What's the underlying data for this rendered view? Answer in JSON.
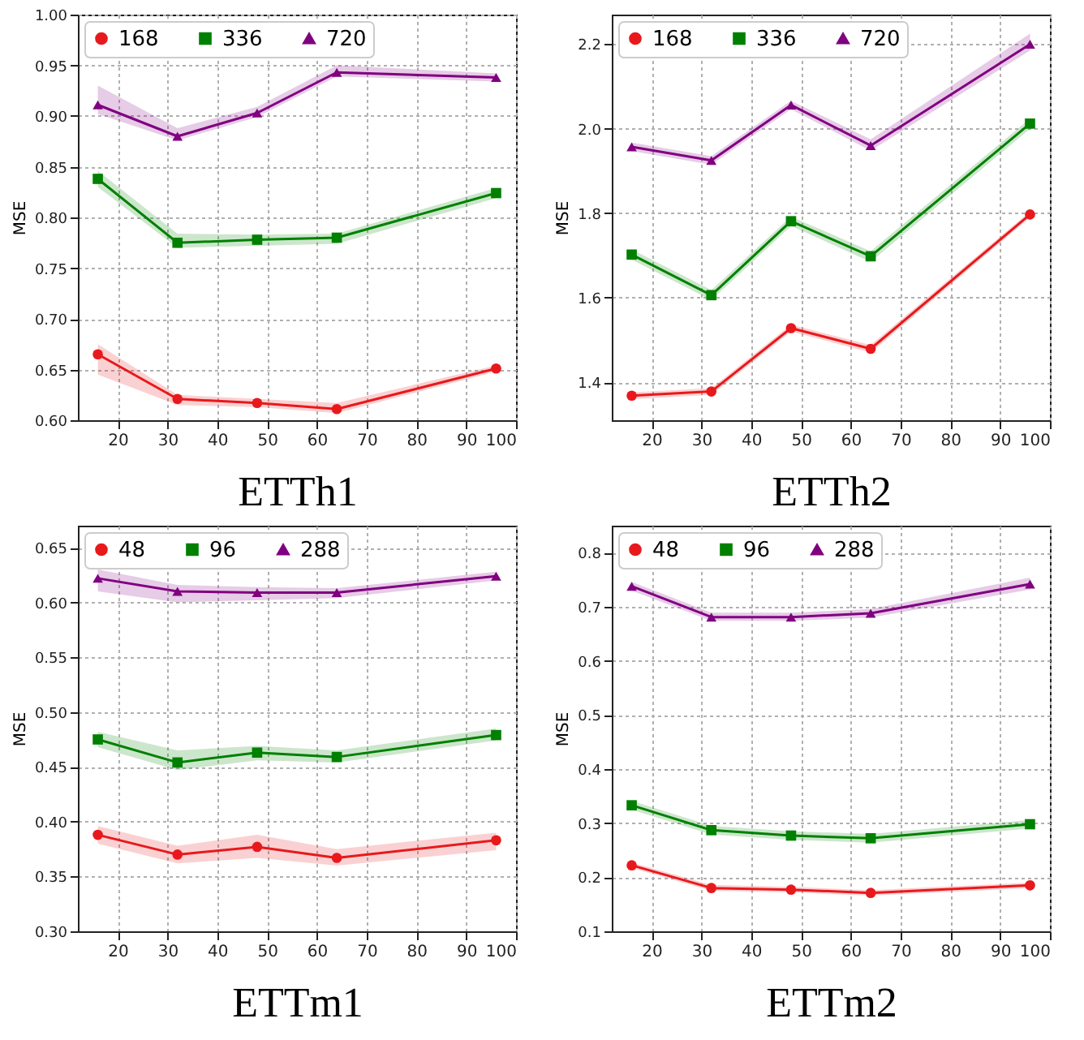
{
  "chart_data": [
    {
      "type": "line",
      "xlabel": "ETTh1",
      "ylabel": "MSE",
      "x": [
        16,
        32,
        48,
        64,
        96
      ],
      "xlim": [
        12,
        100
      ],
      "xticks": [
        20,
        30,
        40,
        50,
        60,
        70,
        80,
        90,
        100
      ],
      "ylim": [
        0.6,
        1.0
      ],
      "yticks": [
        {
          "value": 0.6,
          "label": "0.60"
        },
        0.65,
        {
          "value": 0.7,
          "label": "0.70"
        },
        0.75,
        {
          "value": 0.8,
          "label": "0.80"
        },
        0.85,
        {
          "value": 0.9,
          "label": "0.90"
        },
        0.95,
        {
          "value": 1.0,
          "label": "1.00"
        }
      ],
      "grid": true,
      "legend": "top left",
      "series": [
        {
          "name": "168",
          "color": "#e8191c",
          "marker": "circle",
          "values": [
            0.665,
            0.621,
            0.617,
            0.611,
            0.651
          ],
          "lower": [
            0.645,
            0.615,
            0.613,
            0.607,
            0.648
          ],
          "upper": [
            0.675,
            0.625,
            0.621,
            0.617,
            0.654
          ]
        },
        {
          "name": "336",
          "color": "#008000",
          "marker": "square",
          "values": [
            0.838,
            0.775,
            0.778,
            0.78,
            0.824
          ],
          "lower": [
            0.83,
            0.77,
            0.772,
            0.774,
            0.819
          ],
          "upper": [
            0.846,
            0.784,
            0.783,
            0.784,
            0.829
          ]
        },
        {
          "name": "720",
          "color": "#800080",
          "marker": "triangle",
          "values": [
            0.911,
            0.88,
            0.903,
            0.943,
            0.938
          ],
          "lower": [
            0.902,
            0.876,
            0.899,
            0.939,
            0.934
          ],
          "upper": [
            0.93,
            0.888,
            0.909,
            0.95,
            0.942
          ]
        }
      ]
    },
    {
      "type": "line",
      "xlabel": "ETTh2",
      "ylabel": "MSE",
      "x": [
        16,
        32,
        48,
        64,
        96
      ],
      "xlim": [
        12,
        100
      ],
      "xticks": [
        20,
        30,
        40,
        50,
        60,
        70,
        80,
        90,
        100
      ],
      "ylim": [
        1.31,
        2.27
      ],
      "yticks": [
        1.4,
        1.6,
        1.8,
        {
          "value": 2.0,
          "label": "2.0"
        },
        2.2
      ],
      "grid": true,
      "legend": "top left",
      "series": [
        {
          "name": "168",
          "color": "#e8191c",
          "marker": "circle",
          "values": [
            1.368,
            1.378,
            1.528,
            1.479,
            1.797
          ],
          "lower": [
            1.36,
            1.37,
            1.52,
            1.47,
            1.79
          ],
          "upper": [
            1.376,
            1.386,
            1.536,
            1.488,
            1.804
          ]
        },
        {
          "name": "336",
          "color": "#008000",
          "marker": "square",
          "values": [
            1.702,
            1.606,
            1.781,
            1.698,
            2.012
          ],
          "lower": [
            1.69,
            1.594,
            1.77,
            1.685,
            2.0
          ],
          "upper": [
            1.714,
            1.618,
            1.792,
            1.71,
            2.024
          ]
        },
        {
          "name": "720",
          "color": "#800080",
          "marker": "triangle",
          "values": [
            1.957,
            1.925,
            2.056,
            1.96,
            2.2
          ],
          "lower": [
            1.947,
            1.915,
            2.046,
            1.948,
            2.185
          ],
          "upper": [
            1.967,
            1.935,
            2.066,
            1.975,
            2.225
          ]
        }
      ]
    },
    {
      "type": "line",
      "xlabel": "ETTm1",
      "ylabel": "MSE",
      "x": [
        16,
        32,
        48,
        64,
        96
      ],
      "xlim": [
        12,
        100
      ],
      "xticks": [
        20,
        30,
        40,
        50,
        60,
        70,
        80,
        90,
        100
      ],
      "ylim": [
        0.3,
        0.67
      ],
      "yticks": [
        {
          "value": 0.3,
          "label": "0.30"
        },
        0.35,
        {
          "value": 0.4,
          "label": "0.40"
        },
        0.45,
        {
          "value": 0.5,
          "label": "0.50"
        },
        0.55,
        {
          "value": 0.6,
          "label": "0.60"
        },
        0.65
      ],
      "grid": true,
      "legend": "top left",
      "series": [
        {
          "name": "48",
          "color": "#e8191c",
          "marker": "circle",
          "values": [
            0.388,
            0.37,
            0.377,
            0.367,
            0.383
          ],
          "lower": [
            0.38,
            0.362,
            0.367,
            0.36,
            0.374
          ],
          "upper": [
            0.396,
            0.378,
            0.388,
            0.375,
            0.39
          ]
        },
        {
          "name": "96",
          "color": "#008000",
          "marker": "square",
          "values": [
            0.475,
            0.454,
            0.463,
            0.459,
            0.479
          ],
          "lower": [
            0.468,
            0.447,
            0.456,
            0.454,
            0.474
          ],
          "upper": [
            0.482,
            0.465,
            0.469,
            0.465,
            0.485
          ]
        },
        {
          "name": "288",
          "color": "#800080",
          "marker": "triangle",
          "values": [
            0.622,
            0.61,
            0.609,
            0.609,
            0.624
          ],
          "lower": [
            0.61,
            0.6,
            0.602,
            0.604,
            0.62
          ],
          "upper": [
            0.63,
            0.616,
            0.614,
            0.613,
            0.628
          ]
        }
      ]
    },
    {
      "type": "line",
      "xlabel": "ETTm2",
      "ylabel": "MSE",
      "x": [
        16,
        32,
        48,
        64,
        96
      ],
      "xlim": [
        12,
        100
      ],
      "xticks": [
        20,
        30,
        40,
        50,
        60,
        70,
        80,
        90,
        100
      ],
      "ylim": [
        0.1,
        0.85
      ],
      "yticks": [
        0.1,
        0.2,
        0.3,
        0.4,
        0.5,
        0.6,
        0.7,
        0.8
      ],
      "grid": true,
      "legend": "top left",
      "series": [
        {
          "name": "48",
          "color": "#e8191c",
          "marker": "circle",
          "values": [
            0.222,
            0.18,
            0.177,
            0.171,
            0.185
          ],
          "lower": [
            0.217,
            0.175,
            0.172,
            0.166,
            0.18
          ],
          "upper": [
            0.227,
            0.186,
            0.182,
            0.176,
            0.19
          ]
        },
        {
          "name": "96",
          "color": "#008000",
          "marker": "square",
          "values": [
            0.333,
            0.287,
            0.277,
            0.272,
            0.298
          ],
          "lower": [
            0.325,
            0.279,
            0.269,
            0.264,
            0.29
          ],
          "upper": [
            0.341,
            0.295,
            0.285,
            0.28,
            0.306
          ]
        },
        {
          "name": "288",
          "color": "#800080",
          "marker": "triangle",
          "values": [
            0.738,
            0.681,
            0.681,
            0.688,
            0.742
          ],
          "lower": [
            0.73,
            0.674,
            0.674,
            0.68,
            0.732
          ],
          "upper": [
            0.746,
            0.689,
            0.689,
            0.696,
            0.754
          ]
        }
      ]
    }
  ]
}
